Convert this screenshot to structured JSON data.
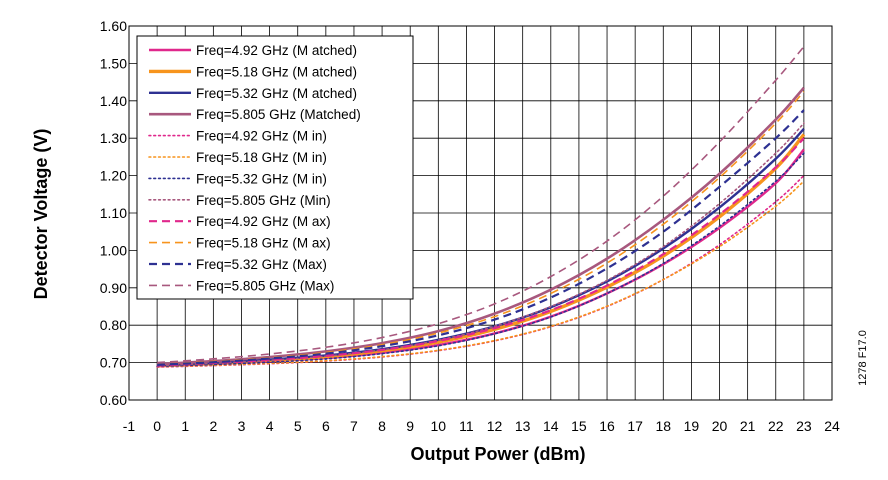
{
  "chart_data": {
    "type": "line",
    "xlabel": "Output Power (dBm)",
    "ylabel": "Detector Voltage (V)",
    "xlim": [
      -1,
      24
    ],
    "ylim": [
      0.6,
      1.6
    ],
    "x_ticks": [
      "-1",
      "0",
      "1",
      "2",
      "3",
      "4",
      "5",
      "6",
      "7",
      "8",
      "9",
      "10",
      "11",
      "12",
      "13",
      "14",
      "15",
      "16",
      "17",
      "18",
      "19",
      "20",
      "21",
      "22",
      "23",
      "24"
    ],
    "y_ticks": [
      "0.60",
      "0.70",
      "0.80",
      "0.90",
      "1.00",
      "1.10",
      "1.20",
      "1.30",
      "1.40",
      "1.50",
      "1.60"
    ],
    "grid": true,
    "legend_position": "top-left",
    "figure_id": "1278 F17.0",
    "x": [
      0,
      2,
      4,
      6,
      8,
      10,
      12,
      14,
      16,
      18,
      20,
      22,
      23
    ],
    "series": [
      {
        "name": "Freq=4.92 GHz (M atched)",
        "color": "#e0288c",
        "style": "solid",
        "width": 2.4,
        "values": [
          0.69,
          0.696,
          0.703,
          0.712,
          0.726,
          0.747,
          0.778,
          0.823,
          0.885,
          0.963,
          1.06,
          1.18,
          1.27
        ]
      },
      {
        "name": "Freq=5.18 GHz (M atched)",
        "color": "#f7941d",
        "style": "solid",
        "width": 3.4,
        "values": [
          0.692,
          0.698,
          0.706,
          0.716,
          0.732,
          0.755,
          0.789,
          0.837,
          0.902,
          0.985,
          1.09,
          1.22,
          1.31
        ]
      },
      {
        "name": "Freq=5.32 GHz (M atched)",
        "color": "#2e3192",
        "style": "solid",
        "width": 2.4,
        "values": [
          0.693,
          0.699,
          0.708,
          0.719,
          0.736,
          0.761,
          0.797,
          0.848,
          0.917,
          1.005,
          1.115,
          1.245,
          1.325
        ]
      },
      {
        "name": "Freq=5.805 GHz (Matched)",
        "color": "#a8587e",
        "style": "solid",
        "width": 2.6,
        "values": [
          0.696,
          0.704,
          0.715,
          0.73,
          0.752,
          0.784,
          0.831,
          0.895,
          0.978,
          1.082,
          1.205,
          1.35,
          1.435
        ]
      },
      {
        "name": "Freq=4.92 GHz (M in)",
        "color": "#e0288c",
        "style": "dotted",
        "width": 1.6,
        "values": [
          0.688,
          0.692,
          0.697,
          0.704,
          0.715,
          0.732,
          0.758,
          0.796,
          0.85,
          0.922,
          1.015,
          1.13,
          1.2
        ]
      },
      {
        "name": "Freq=5.18 GHz (M in)",
        "color": "#f7941d",
        "style": "dotted",
        "width": 1.6,
        "values": [
          0.689,
          0.693,
          0.698,
          0.705,
          0.716,
          0.733,
          0.759,
          0.797,
          0.851,
          0.922,
          1.01,
          1.118,
          1.185
        ]
      },
      {
        "name": "Freq=5.32 GHz (M in)",
        "color": "#2e3192",
        "style": "dotted",
        "width": 1.6,
        "values": [
          0.69,
          0.695,
          0.701,
          0.71,
          0.724,
          0.745,
          0.777,
          0.822,
          0.885,
          0.965,
          1.065,
          1.185,
          1.26
        ]
      },
      {
        "name": "Freq=5.805 GHz (Min)",
        "color": "#a8587e",
        "style": "dotted",
        "width": 1.6,
        "values": [
          0.692,
          0.698,
          0.706,
          0.717,
          0.734,
          0.76,
          0.797,
          0.85,
          0.92,
          1.01,
          1.125,
          1.26,
          1.34
        ]
      },
      {
        "name": "Freq=4.92 GHz (M ax)",
        "color": "#e0288c",
        "style": "dashed",
        "width": 2.2,
        "values": [
          0.692,
          0.699,
          0.707,
          0.718,
          0.734,
          0.758,
          0.792,
          0.84,
          0.906,
          0.99,
          1.096,
          1.222,
          1.3
        ]
      },
      {
        "name": "Freq=5.18 GHz (M ax)",
        "color": "#f7941d",
        "style": "dashed",
        "width": 1.6,
        "values": [
          0.695,
          0.703,
          0.713,
          0.727,
          0.748,
          0.779,
          0.823,
          0.885,
          0.966,
          1.07,
          1.195,
          1.34,
          1.425
        ]
      },
      {
        "name": "Freq=5.32 GHz (Max)",
        "color": "#2e3192",
        "style": "dashed",
        "width": 2.2,
        "values": [
          0.694,
          0.701,
          0.711,
          0.724,
          0.744,
          0.773,
          0.815,
          0.874,
          0.952,
          1.05,
          1.17,
          1.3,
          1.375
        ]
      },
      {
        "name": "Freq=5.805 GHz (Max)",
        "color": "#a8587e",
        "style": "dashed",
        "width": 1.6,
        "values": [
          0.7,
          0.71,
          0.723,
          0.741,
          0.767,
          0.804,
          0.857,
          0.93,
          1.025,
          1.145,
          1.29,
          1.455,
          1.545
        ]
      }
    ]
  }
}
